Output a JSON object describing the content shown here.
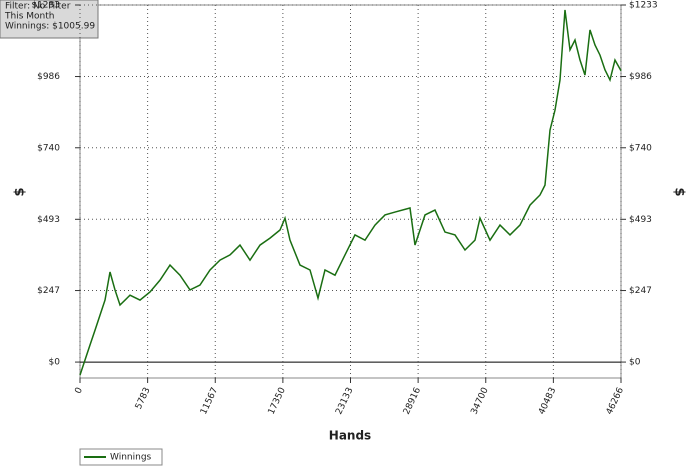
{
  "chart_data": {
    "type": "line",
    "annotations": [
      "Filter: No Filter",
      "This Month",
      "Winnings: $1005.99"
    ],
    "xlabel": "Hands",
    "ylabel": "$",
    "y2label": "$",
    "xlim": [
      0,
      46266
    ],
    "ylim": [
      -55,
      1233
    ],
    "xticks": [
      0,
      5783,
      11567,
      17350,
      23133,
      28916,
      34700,
      40483,
      46266
    ],
    "yticks": [
      {
        "value": 0,
        "label": "$0"
      },
      {
        "value": 247,
        "label": "$247"
      },
      {
        "value": 493,
        "label": "$493"
      },
      {
        "value": 740,
        "label": "$740"
      },
      {
        "value": 986,
        "label": "$986"
      },
      {
        "value": 1233,
        "label": "$1233"
      }
    ],
    "grid": true,
    "legend": "bottom-left",
    "series": [
      {
        "name": "Winnings",
        "color": "#1a6e12",
        "x": [
          0,
          428,
          855,
          1283,
          1711,
          2139,
          2566,
          2994,
          3421,
          4276,
          5131,
          5986,
          6842,
          7697,
          8552,
          9407,
          10262,
          11118,
          11973,
          12828,
          13683,
          14538,
          15394,
          16249,
          17104,
          17531,
          17959,
          18814,
          19670,
          20354,
          20952,
          21807,
          22662,
          23517,
          24373,
          25228,
          26083,
          26938,
          28221,
          28649,
          29504,
          30359,
          31214,
          32069,
          32925,
          33780,
          34207,
          35063,
          35918,
          36773,
          37628,
          38484,
          39339,
          39766,
          40194,
          40621,
          41049,
          41476,
          41904,
          42331,
          42759,
          43186,
          43614,
          44041,
          44469,
          44896,
          45324,
          45751,
          46266
        ],
        "values": [
          -45,
          7,
          59,
          110,
          162,
          214,
          311,
          249,
          197,
          231,
          214,
          242,
          283,
          335,
          300,
          249,
          266,
          318,
          352,
          370,
          404,
          352,
          404,
          428,
          456,
          497,
          421,
          335,
          318,
          221,
          318,
          300,
          370,
          439,
          421,
          473,
          508,
          518,
          532,
          404,
          508,
          525,
          449,
          439,
          387,
          421,
          497,
          421,
          473,
          439,
          473,
          542,
          577,
          611,
          801,
          870,
          974,
          1216,
          1078,
          1112,
          1043,
          991,
          1147,
          1095,
          1060,
          1009,
          974,
          1043,
          1006
        ]
      }
    ]
  }
}
